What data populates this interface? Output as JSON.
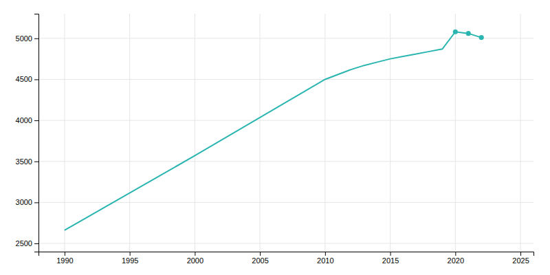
{
  "chart_data": {
    "type": "line",
    "x": [
      1990,
      2000,
      2010,
      2011,
      2012,
      2013,
      2014,
      2015,
      2016,
      2017,
      2018,
      2019,
      2020,
      2021,
      2022
    ],
    "series": [
      {
        "color": "#2ab5b0",
        "values": [
          2660,
          3570,
          4500,
          4560,
          4620,
          4670,
          4710,
          4750,
          4780,
          4810,
          4840,
          4870,
          5080,
          5060,
          5010
        ]
      },
      {
        "type": "scatter",
        "marker": "circle",
        "color": "#2ab5b0",
        "values": [
          null,
          null,
          null,
          null,
          null,
          null,
          null,
          null,
          null,
          null,
          null,
          null,
          5080,
          5060,
          5010
        ]
      }
    ],
    "xlim": [
      1988,
      2026
    ],
    "ylim": [
      2400,
      5300
    ],
    "xticks": [
      1990,
      1995,
      2000,
      2005,
      2010,
      2015,
      2020,
      2025
    ],
    "yticks": [
      2500,
      3000,
      3500,
      4000,
      4500,
      5000
    ],
    "grid": true
  }
}
